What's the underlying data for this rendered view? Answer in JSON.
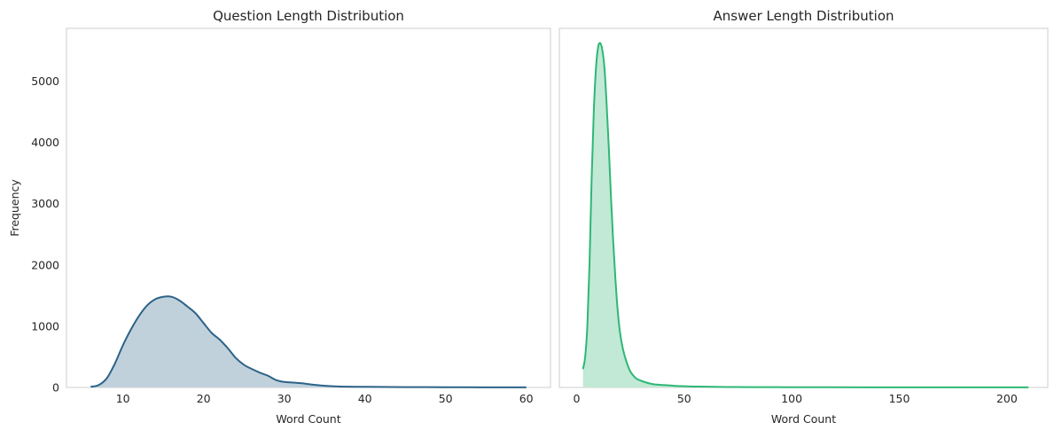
{
  "chart_data": [
    {
      "type": "area",
      "title": "Question Length Distribution",
      "xlabel": "Word Count",
      "ylabel": "Frequency",
      "xlim": [
        3,
        63
      ],
      "ylim": [
        0,
        5860
      ],
      "xticks": [
        10,
        20,
        30,
        40,
        50,
        60
      ],
      "yticks": [
        0,
        1000,
        2000,
        3000,
        4000,
        5000
      ],
      "grid": false,
      "color": "#2c6388",
      "fill_color": "#c0d1dc",
      "series": [
        {
          "x": [
            6,
            7,
            8,
            9,
            10,
            11,
            12,
            13,
            14,
            15,
            16,
            17,
            18,
            19,
            20,
            21,
            22,
            23,
            24,
            25,
            26,
            27,
            28,
            29,
            30,
            32,
            34,
            36,
            38,
            40,
            45,
            50,
            55,
            60
          ],
          "values": [
            10,
            40,
            150,
            390,
            690,
            950,
            1170,
            1340,
            1440,
            1480,
            1480,
            1420,
            1320,
            1210,
            1050,
            890,
            780,
            640,
            480,
            370,
            300,
            240,
            190,
            120,
            90,
            70,
            40,
            20,
            12,
            10,
            6,
            4,
            2,
            1
          ]
        }
      ]
    },
    {
      "type": "area",
      "title": "Answer Length Distribution",
      "xlabel": "Word Count",
      "ylabel": "",
      "xlim": [
        -8,
        219
      ],
      "ylim": [
        0,
        5860
      ],
      "xticks": [
        0,
        50,
        100,
        150,
        200
      ],
      "yticks": [],
      "grid": false,
      "color": "#2db776",
      "fill_color": "#c2e9d5",
      "series": [
        {
          "x": [
            3,
            4,
            5,
            6,
            7,
            8,
            9,
            10,
            11,
            12,
            13,
            14,
            15,
            16,
            17,
            18,
            19,
            20,
            21,
            22,
            23,
            24,
            25,
            26,
            27,
            28,
            30,
            32,
            34,
            36,
            38,
            40,
            43,
            46,
            50,
            55,
            60,
            70,
            80,
            100,
            120,
            150,
            180,
            210
          ],
          "values": [
            300,
            500,
            1000,
            2000,
            3400,
            4500,
            5200,
            5550,
            5620,
            5500,
            5200,
            4600,
            3900,
            3100,
            2400,
            1800,
            1300,
            950,
            720,
            560,
            440,
            340,
            260,
            210,
            170,
            140,
            110,
            85,
            65,
            50,
            45,
            40,
            35,
            25,
            20,
            15,
            12,
            8,
            6,
            4,
            3,
            2,
            1,
            1
          ]
        }
      ]
    }
  ]
}
